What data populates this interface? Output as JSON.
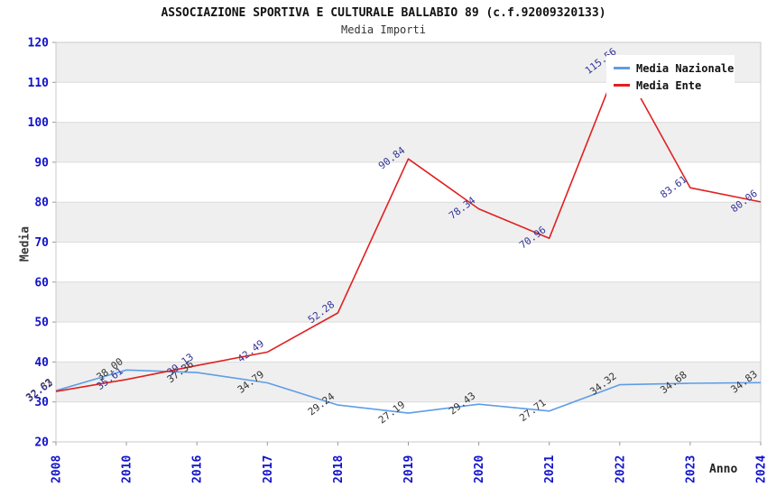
{
  "title": "ASSOCIAZIONE SPORTIVA E CULTURALE BALLABIO 89 (c.f.92009320133)",
  "subtitle": "Media Importi",
  "legend": {
    "items": [
      {
        "label": "Media Nazionale",
        "color": "#5e9de6"
      },
      {
        "label": "Media Ente",
        "color": "#e02020"
      }
    ]
  },
  "chart_data": {
    "type": "line",
    "title": "ASSOCIAZIONE SPORTIVA E CULTURALE BALLABIO 89 (c.f.92009320133)",
    "subtitle": "Media Importi",
    "xlabel": "Anno",
    "ylabel": "Media",
    "categories": [
      "2008",
      "2010",
      "2016",
      "2017",
      "2018",
      "2019",
      "2020",
      "2021",
      "2022",
      "2023",
      "2024"
    ],
    "series": [
      {
        "name": "Media Nazionale",
        "color": "#5e9de6",
        "label_color": "#333333",
        "values": [
          32.83,
          38.0,
          37.36,
          34.79,
          29.24,
          27.19,
          29.43,
          27.71,
          34.32,
          34.68,
          34.83
        ]
      },
      {
        "name": "Media Ente",
        "color": "#e02020",
        "label_color": "#333399",
        "values": [
          32.62,
          35.61,
          39.13,
          42.49,
          52.28,
          90.84,
          78.34,
          70.96,
          115.56,
          83.61,
          80.06
        ]
      }
    ],
    "ylim": [
      20,
      120
    ],
    "ytick_step": 10,
    "yticks": [
      20,
      30,
      40,
      50,
      60,
      70,
      80,
      90,
      100,
      110,
      120
    ],
    "grid": true,
    "band_colors": [
      "#ffffff",
      "#efefef"
    ],
    "gridline_color": "#dcdcdc",
    "axis_border_color": "#c8c8c8",
    "tick_label_color": "#1212cc",
    "legend_position": "top-right",
    "point_label_rotation_deg": -37,
    "point_label_format": "0.00"
  }
}
